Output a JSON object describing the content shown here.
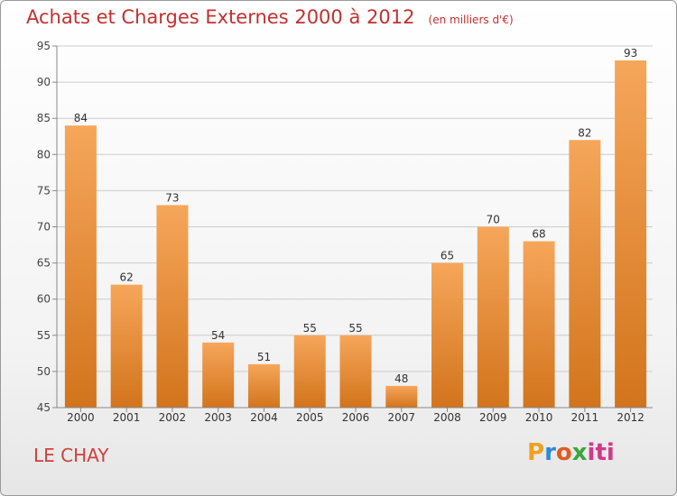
{
  "title": "Achats et Charges Externes 2000 à 2012",
  "unit_note": "(en milliers d'€)",
  "commune": "LE CHAY",
  "logo": {
    "p": "P",
    "r": "r",
    "o": "o",
    "x": "x",
    "iti": "iti"
  },
  "chart_data": {
    "type": "bar",
    "title": "Achats et Charges Externes 2000 à 2012",
    "xlabel": "",
    "ylabel": "",
    "categories": [
      "2000",
      "2001",
      "2002",
      "2003",
      "2004",
      "2005",
      "2006",
      "2007",
      "2008",
      "2009",
      "2010",
      "2011",
      "2012"
    ],
    "values": [
      84,
      62,
      73,
      54,
      51,
      55,
      55,
      48,
      65,
      70,
      68,
      82,
      93
    ],
    "ylim": [
      45,
      95
    ],
    "yticks": [
      45,
      50,
      55,
      60,
      65,
      70,
      75,
      80,
      85,
      90,
      95
    ],
    "grid": true,
    "colors": {
      "bar_light": "#f6a65a",
      "bar_dark": "#d2741c",
      "grid": "#cccccc",
      "title": "#c43030"
    }
  }
}
